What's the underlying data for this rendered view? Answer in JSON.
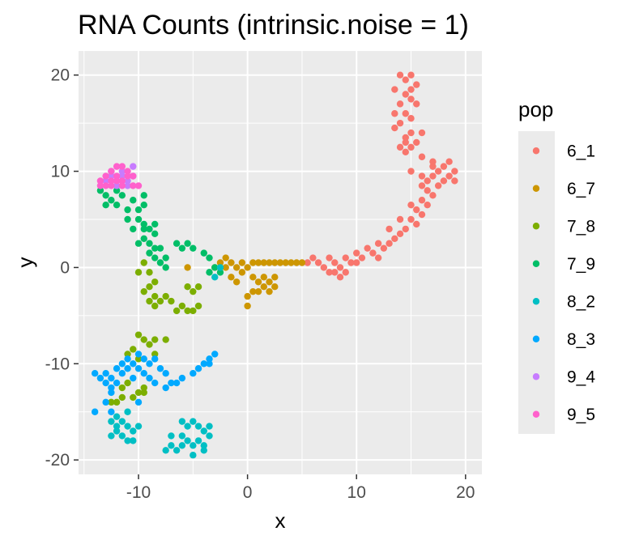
{
  "chart_data": {
    "type": "scatter",
    "title": "RNA Counts (intrinsic.noise = 1)",
    "xlabel": "x",
    "ylabel": "y",
    "xlim": [
      -15.5,
      21.5
    ],
    "ylim": [
      -21.5,
      22.5
    ],
    "x_ticks": [
      -10,
      0,
      10,
      20
    ],
    "y_ticks": [
      -20,
      -10,
      0,
      10,
      20
    ],
    "x_tick_labels": [
      "-10",
      "0",
      "10",
      "20"
    ],
    "y_tick_labels": [
      "-20",
      "-10",
      "0",
      "10",
      "20"
    ],
    "grid": true,
    "legend_position": "right",
    "legend": {
      "title": "pop",
      "entries": [
        {
          "label": "6_1",
          "color": "#F8766D"
        },
        {
          "label": "6_7",
          "color": "#CD9600"
        },
        {
          "label": "7_8",
          "color": "#7CAE00"
        },
        {
          "label": "7_9",
          "color": "#00BE67"
        },
        {
          "label": "8_2",
          "color": "#00BFC4"
        },
        {
          "label": "8_3",
          "color": "#00A9FF"
        },
        {
          "label": "9_4",
          "color": "#C77CFF"
        },
        {
          "label": "9_5",
          "color": "#FF61CC"
        }
      ]
    },
    "series": [
      {
        "name": "6_1",
        "color": "#F8766D",
        "points": [
          [
            14,
            20
          ],
          [
            14.5,
            19.5
          ],
          [
            15,
            20
          ],
          [
            15.5,
            19
          ],
          [
            13.5,
            18.5
          ],
          [
            14.5,
            18
          ],
          [
            15,
            17.5
          ],
          [
            14,
            17
          ],
          [
            15.5,
            17
          ],
          [
            14.5,
            16
          ],
          [
            15,
            15.5
          ],
          [
            14,
            15
          ],
          [
            13.5,
            14.5
          ],
          [
            15,
            14
          ],
          [
            14.5,
            13.5
          ],
          [
            15.5,
            13
          ],
          [
            14,
            12.5
          ],
          [
            14.5,
            12
          ],
          [
            15,
            12.5
          ],
          [
            16,
            11.5
          ],
          [
            17,
            10.5
          ],
          [
            17.5,
            10
          ],
          [
            18,
            10.5
          ],
          [
            19,
            10
          ],
          [
            18.5,
            9.5
          ],
          [
            18,
            9
          ],
          [
            17,
            9.5
          ],
          [
            16.5,
            9
          ],
          [
            17.5,
            8.5
          ],
          [
            16.5,
            8
          ],
          [
            17,
            7.5
          ],
          [
            16,
            7
          ],
          [
            16.5,
            6.5
          ],
          [
            15.5,
            6
          ],
          [
            16,
            5.5
          ],
          [
            15,
            5
          ],
          [
            15.5,
            4.5
          ],
          [
            14.5,
            4
          ],
          [
            14,
            3.5
          ],
          [
            13.5,
            3
          ],
          [
            13,
            2.5
          ],
          [
            12.5,
            2
          ],
          [
            12,
            2.5
          ],
          [
            11.5,
            1.5
          ],
          [
            11,
            2
          ],
          [
            10.5,
            1
          ],
          [
            10,
            1.5
          ],
          [
            9.5,
            0.5
          ],
          [
            9,
            1
          ],
          [
            8.5,
            0
          ],
          [
            8,
            0.5
          ],
          [
            7.5,
            1
          ],
          [
            7,
            0
          ],
          [
            8,
            -0.5
          ],
          [
            8.5,
            -1
          ],
          [
            7.5,
            -0.5
          ],
          [
            6.5,
            0.5
          ],
          [
            6,
            1
          ],
          [
            5.5,
            0.5
          ],
          [
            15,
            10
          ],
          [
            16,
            8.5
          ],
          [
            14,
            5
          ],
          [
            13,
            4
          ],
          [
            12,
            1
          ],
          [
            10,
            0.5
          ],
          [
            9,
            -0.5
          ],
          [
            17,
            11
          ],
          [
            18.5,
            11
          ],
          [
            19,
            9
          ],
          [
            16,
            9.5
          ],
          [
            15,
            6.5
          ],
          [
            14.5,
            13
          ],
          [
            13.5,
            16
          ],
          [
            16,
            14
          ],
          [
            15,
            18.5
          ]
        ]
      },
      {
        "name": "6_7",
        "color": "#CD9600",
        "points": [
          [
            -2,
            1
          ],
          [
            -1.5,
            0.5
          ],
          [
            -1,
            0
          ],
          [
            -0.5,
            -0.5
          ],
          [
            0,
            0
          ],
          [
            0.5,
            -1
          ],
          [
            1,
            -1.5
          ],
          [
            1.5,
            -1
          ],
          [
            2,
            -1.5
          ],
          [
            2.5,
            -1
          ],
          [
            2.5,
            -2
          ],
          [
            1.5,
            -2
          ],
          [
            0.5,
            -2.5
          ],
          [
            0,
            -3
          ],
          [
            0,
            -4
          ],
          [
            -1,
            -1.5
          ],
          [
            -0.5,
            0.5
          ],
          [
            0.5,
            0.5
          ],
          [
            1,
            0.5
          ],
          [
            1.5,
            0.5
          ],
          [
            2,
            0.5
          ],
          [
            2.5,
            0.5
          ],
          [
            3,
            0.5
          ],
          [
            3.5,
            0.5
          ],
          [
            4,
            0.5
          ],
          [
            4.5,
            0.5
          ],
          [
            5,
            0.5
          ],
          [
            -1.5,
            -1
          ],
          [
            -2,
            0
          ],
          [
            -2.5,
            0.5
          ],
          [
            -3,
            0
          ],
          [
            1,
            -2.5
          ],
          [
            2,
            -2.5
          ],
          [
            -5.5,
            0
          ]
        ]
      },
      {
        "name": "7_8",
        "color": "#7CAE00",
        "points": [
          [
            -10,
            -0.5
          ],
          [
            -9.5,
            0.5
          ],
          [
            -9,
            -0.5
          ],
          [
            -8.5,
            -1.5
          ],
          [
            -9,
            -2
          ],
          [
            -9.5,
            -2.5
          ],
          [
            -8.5,
            -3
          ],
          [
            -8,
            -3.5
          ],
          [
            -9,
            -3.5
          ],
          [
            -8.5,
            -4
          ],
          [
            -7.5,
            -3
          ],
          [
            -7,
            -3.5
          ],
          [
            -6.5,
            -4.5
          ],
          [
            -6,
            -4
          ],
          [
            -5.5,
            -4.5
          ],
          [
            -5,
            -4.5
          ],
          [
            -4.5,
            -4
          ],
          [
            -5,
            -2.5
          ],
          [
            -5.5,
            -2
          ],
          [
            -4.5,
            -2
          ],
          [
            -9.5,
            -7.5
          ],
          [
            -10,
            -7
          ],
          [
            -9,
            -8
          ],
          [
            -8.5,
            -7.5
          ],
          [
            -7.5,
            -7.5
          ],
          [
            -10.5,
            -8.5
          ],
          [
            -11,
            -9
          ],
          [
            -10,
            -9.5
          ],
          [
            -11,
            -12
          ],
          [
            -11.5,
            -12.5
          ],
          [
            -10,
            -13
          ],
          [
            -10.5,
            -13.5
          ],
          [
            -9.5,
            -13
          ],
          [
            -11.5,
            -13.5
          ],
          [
            -12,
            -14
          ],
          [
            -9.5,
            -12.5
          ],
          [
            -12.5,
            -14
          ],
          [
            -8.5,
            -9
          ]
        ]
      },
      {
        "name": "7_9",
        "color": "#00BE67",
        "points": [
          [
            -13.5,
            8
          ],
          [
            -13,
            7.5
          ],
          [
            -12.5,
            7
          ],
          [
            -13,
            6.5
          ],
          [
            -12,
            6.5
          ],
          [
            -11,
            6
          ],
          [
            -10,
            6
          ],
          [
            -9.5,
            6.5
          ],
          [
            -10.5,
            7
          ],
          [
            -9.5,
            7.5
          ],
          [
            -10,
            5
          ],
          [
            -9.5,
            4.5
          ],
          [
            -9,
            4
          ],
          [
            -8.5,
            3.5
          ],
          [
            -9.5,
            3
          ],
          [
            -10,
            2.5
          ],
          [
            -9,
            2.5
          ],
          [
            -8.5,
            2
          ],
          [
            -8,
            2
          ],
          [
            -9,
            1.5
          ],
          [
            -8.5,
            1
          ],
          [
            -7.5,
            1
          ],
          [
            -8,
            0.5
          ],
          [
            -7.5,
            0
          ],
          [
            -6.5,
            2.5
          ],
          [
            -6,
            2
          ],
          [
            -5.5,
            2.5
          ],
          [
            -5,
            2
          ],
          [
            -4,
            1.5
          ],
          [
            -3.5,
            1
          ],
          [
            -3.5,
            -0.5
          ],
          [
            -3,
            0
          ],
          [
            -2.5,
            -0.5
          ],
          [
            -11,
            5
          ],
          [
            -10.5,
            4
          ],
          [
            -9.5,
            4
          ],
          [
            -8.5,
            4.5
          ],
          [
            -12,
            8
          ],
          [
            -11.5,
            7.5
          ]
        ]
      },
      {
        "name": "8_2",
        "color": "#00BFC4",
        "points": [
          [
            -12.5,
            -16
          ],
          [
            -12,
            -16.5
          ],
          [
            -11.5,
            -16
          ],
          [
            -11,
            -16.5
          ],
          [
            -12,
            -17
          ],
          [
            -11.5,
            -17.5
          ],
          [
            -11,
            -18
          ],
          [
            -12.5,
            -17.5
          ],
          [
            -10.5,
            -17
          ],
          [
            -10,
            -16.5
          ],
          [
            -11,
            -15
          ],
          [
            -12,
            -15.5
          ],
          [
            -10.5,
            -18
          ],
          [
            -6,
            -16
          ],
          [
            -5.5,
            -16.5
          ],
          [
            -5,
            -16
          ],
          [
            -4.5,
            -16.5
          ],
          [
            -4,
            -17
          ],
          [
            -6,
            -17.5
          ],
          [
            -5.5,
            -18
          ],
          [
            -5,
            -18.5
          ],
          [
            -4.5,
            -18
          ],
          [
            -4,
            -18.5
          ],
          [
            -3.5,
            -17.5
          ],
          [
            -7,
            -18.5
          ],
          [
            -7.5,
            -19
          ],
          [
            -6.5,
            -19
          ],
          [
            -6,
            -18.5
          ],
          [
            -5,
            -19.5
          ],
          [
            -4,
            -19
          ],
          [
            -3.5,
            -16.5
          ],
          [
            -7,
            -17.5
          ],
          [
            -3,
            -1
          ],
          [
            -2.5,
            0
          ]
        ]
      },
      {
        "name": "8_3",
        "color": "#00A9FF",
        "points": [
          [
            -14,
            -11
          ],
          [
            -13.5,
            -11.5
          ],
          [
            -13,
            -11
          ],
          [
            -12.5,
            -11.5
          ],
          [
            -13,
            -12
          ],
          [
            -12.5,
            -12.5
          ],
          [
            -12,
            -12
          ],
          [
            -11.5,
            -11
          ],
          [
            -11,
            -10.5
          ],
          [
            -10.5,
            -10
          ],
          [
            -10,
            -10.5
          ],
          [
            -9.5,
            -11
          ],
          [
            -9,
            -10
          ],
          [
            -8.5,
            -9.5
          ],
          [
            -10,
            -9
          ],
          [
            -11,
            -9.5
          ],
          [
            -11.5,
            -10
          ],
          [
            -12,
            -10.5
          ],
          [
            -9,
            -11.5
          ],
          [
            -8.5,
            -12
          ],
          [
            -7.5,
            -11
          ],
          [
            -7,
            -12
          ],
          [
            -7.5,
            -12.5
          ],
          [
            -6.5,
            -12
          ],
          [
            -6,
            -11.5
          ],
          [
            -5,
            -11
          ],
          [
            -4.5,
            -10.5
          ],
          [
            -4,
            -10
          ],
          [
            -3.5,
            -9.5
          ],
          [
            -3,
            -9
          ],
          [
            -3.5,
            -10
          ],
          [
            -12.5,
            -13
          ],
          [
            -13,
            -14
          ],
          [
            -12.5,
            -15
          ],
          [
            -14,
            -15
          ],
          [
            -10,
            -14
          ],
          [
            -8,
            -10.5
          ],
          [
            -10.5,
            -11.5
          ],
          [
            -9.5,
            -9.5
          ]
        ]
      },
      {
        "name": "9_4",
        "color": "#C77CFF",
        "points": [
          [
            -13,
            9
          ],
          [
            -12.5,
            9.5
          ],
          [
            -12,
            9
          ],
          [
            -11.5,
            9.5
          ],
          [
            -11,
            9
          ],
          [
            -10.5,
            9.5
          ],
          [
            -12,
            8.5
          ],
          [
            -11,
            8.5
          ],
          [
            -11.5,
            10
          ],
          [
            -10.5,
            10.5
          ],
          [
            -12.5,
            10
          ]
        ]
      },
      {
        "name": "9_5",
        "color": "#FF61CC",
        "points": [
          [
            -13.5,
            9
          ],
          [
            -13,
            9.5
          ],
          [
            -12.5,
            10
          ],
          [
            -12,
            10.5
          ],
          [
            -11.5,
            10.5
          ],
          [
            -11,
            10
          ],
          [
            -10.5,
            9.5
          ],
          [
            -12,
            9.5
          ],
          [
            -13,
            8.5
          ],
          [
            -12.5,
            8.5
          ],
          [
            -11.5,
            9
          ],
          [
            -10,
            8.5
          ],
          [
            -10.5,
            8.5
          ],
          [
            -12.5,
            9
          ],
          [
            -11,
            9.5
          ],
          [
            -11.5,
            8.5
          ],
          [
            -13.5,
            8.5
          ],
          [
            -12,
            9
          ]
        ]
      }
    ]
  }
}
